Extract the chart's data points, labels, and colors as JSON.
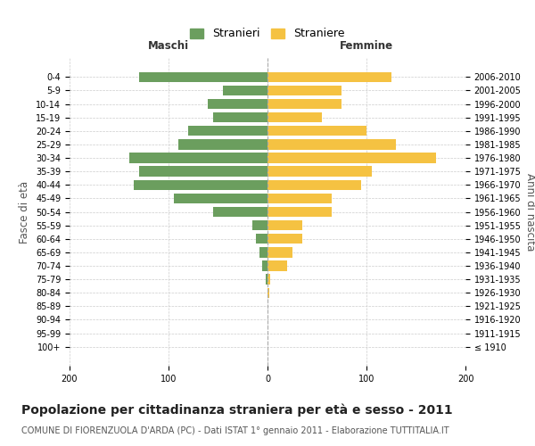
{
  "age_groups": [
    "100+",
    "95-99",
    "90-94",
    "85-89",
    "80-84",
    "75-79",
    "70-74",
    "65-69",
    "60-64",
    "55-59",
    "50-54",
    "45-49",
    "40-44",
    "35-39",
    "30-34",
    "25-29",
    "20-24",
    "15-19",
    "10-14",
    "5-9",
    "0-4"
  ],
  "birth_years": [
    "≤ 1910",
    "1911-1915",
    "1916-1920",
    "1921-1925",
    "1926-1930",
    "1931-1935",
    "1936-1940",
    "1941-1945",
    "1946-1950",
    "1951-1955",
    "1956-1960",
    "1961-1965",
    "1966-1970",
    "1971-1975",
    "1976-1980",
    "1981-1985",
    "1986-1990",
    "1991-1995",
    "1996-2000",
    "2001-2005",
    "2006-2010"
  ],
  "males": [
    0,
    0,
    0,
    0,
    0,
    2,
    5,
    8,
    12,
    15,
    55,
    95,
    135,
    130,
    140,
    90,
    80,
    55,
    60,
    45,
    130
  ],
  "females": [
    0,
    0,
    0,
    0,
    2,
    3,
    20,
    25,
    35,
    35,
    65,
    65,
    95,
    105,
    170,
    130,
    100,
    55,
    75,
    75,
    125
  ],
  "male_color": "#6b9e5e",
  "female_color": "#f5c242",
  "grid_color": "#cccccc",
  "background_color": "#ffffff",
  "title": "Popolazione per cittadinanza straniera per età e sesso - 2011",
  "subtitle": "COMUNE DI FIORENZUOLA D'ARDA (PC) - Dati ISTAT 1° gennaio 2011 - Elaborazione TUTTITALIA.IT",
  "xlabel_left": "Maschi",
  "xlabel_right": "Femmine",
  "ylabel_left": "Fasce di età",
  "ylabel_right": "Anni di nascita",
  "legend_male": "Stranieri",
  "legend_female": "Straniere",
  "xlim": 200,
  "title_fontsize": 10,
  "subtitle_fontsize": 7,
  "tick_fontsize": 7,
  "label_fontsize": 8.5
}
